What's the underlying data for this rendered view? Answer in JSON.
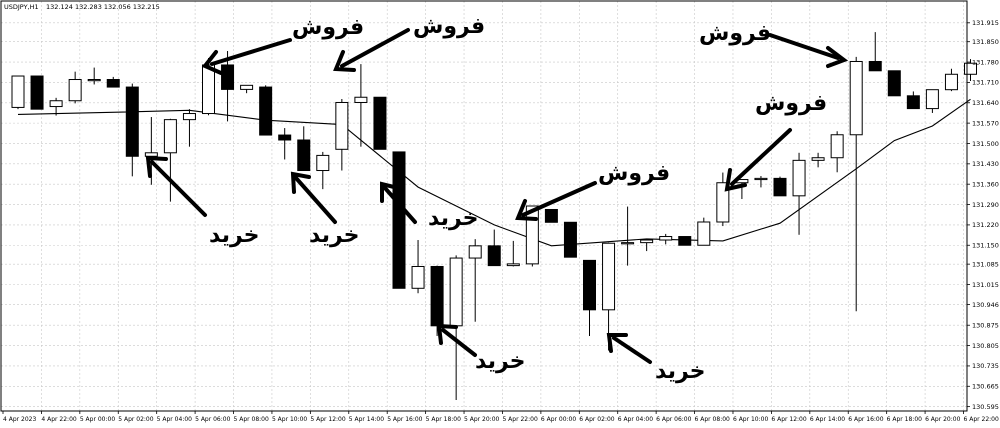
{
  "header": {
    "symbol": "USDJPY,H1",
    "ohlc": "132.124 132.283 132.056 132.215"
  },
  "colors": {
    "background": "#ffffff",
    "bull_body": "#ffffff",
    "bear_body": "#000000",
    "candle_outline": "#000000",
    "moving_average": "#000000",
    "grid": "#c8c8c8"
  },
  "annotations": {
    "buy": "خرید",
    "sell": "فروش"
  },
  "chart_data": {
    "type": "candlestick",
    "title": "",
    "y_ticks": [
      "131.915",
      "131.850",
      "131.780",
      "131.710",
      "131.640",
      "131.570",
      "131.500",
      "131.430",
      "131.360",
      "131.290",
      "131.220",
      "131.150",
      "131.085",
      "131.015",
      "130.946",
      "130.875",
      "130.805",
      "130.735",
      "130.665",
      "130.595"
    ],
    "x_ticks": [
      "4 Apr 2023",
      "4 Apr 22:00",
      "5 Apr 00:00",
      "5 Apr 02:00",
      "5 Apr 04:00",
      "5 Apr 06:00",
      "5 Apr 08:00",
      "5 Apr 10:00",
      "5 Apr 12:00",
      "5 Apr 14:00",
      "5 Apr 16:00",
      "5 Apr 18:00",
      "5 Apr 20:00",
      "5 Apr 22:00",
      "6 Apr 00:00",
      "6 Apr 02:00",
      "6 Apr 04:00",
      "6 Apr 06:00",
      "6 Apr 08:00",
      "6 Apr 10:00",
      "6 Apr 12:00",
      "6 Apr 14:00",
      "6 Apr 16:00",
      "6 Apr 18:00",
      "6 Apr 20:00",
      "6 Apr 22:00"
    ],
    "ylim": [
      130.58,
      131.99
    ],
    "grid": true,
    "candles": [
      {
        "o": 131.624,
        "h": 131.732,
        "l": 131.618,
        "c": 131.732
      },
      {
        "o": 131.732,
        "h": 131.732,
        "l": 131.618,
        "c": 131.618
      },
      {
        "o": 131.627,
        "h": 131.657,
        "l": 131.596,
        "c": 131.647
      },
      {
        "o": 131.647,
        "h": 131.747,
        "l": 131.638,
        "c": 131.72
      },
      {
        "o": 131.72,
        "h": 131.761,
        "l": 131.703,
        "c": 131.72
      },
      {
        "o": 131.72,
        "h": 131.729,
        "l": 131.694,
        "c": 131.694
      },
      {
        "o": 131.694,
        "h": 131.706,
        "l": 131.387,
        "c": 131.456
      },
      {
        "o": 131.456,
        "h": 131.591,
        "l": 131.358,
        "c": 131.468
      },
      {
        "o": 131.468,
        "h": 131.585,
        "l": 131.3,
        "c": 131.582
      },
      {
        "o": 131.582,
        "h": 131.618,
        "l": 131.489,
        "c": 131.603
      },
      {
        "o": 131.603,
        "h": 131.794,
        "l": 131.597,
        "c": 131.77
      },
      {
        "o": 131.77,
        "h": 131.818,
        "l": 131.576,
        "c": 131.686
      },
      {
        "o": 131.686,
        "h": 131.7,
        "l": 131.673,
        "c": 131.7
      },
      {
        "o": 131.694,
        "h": 131.7,
        "l": 131.529,
        "c": 131.529
      },
      {
        "o": 131.529,
        "h": 131.553,
        "l": 131.445,
        "c": 131.512
      },
      {
        "o": 131.512,
        "h": 131.559,
        "l": 131.407,
        "c": 131.407
      },
      {
        "o": 131.407,
        "h": 131.471,
        "l": 131.343,
        "c": 131.459
      },
      {
        "o": 131.48,
        "h": 131.653,
        "l": 131.407,
        "c": 131.641
      },
      {
        "o": 131.641,
        "h": 131.773,
        "l": 131.489,
        "c": 131.659
      },
      {
        "o": 131.659,
        "h": 131.659,
        "l": 131.48,
        "c": 131.48
      },
      {
        "o": 131.471,
        "h": 131.471,
        "l": 131.002,
        "c": 131.002
      },
      {
        "o": 131.002,
        "h": 131.168,
        "l": 130.985,
        "c": 131.077
      },
      {
        "o": 131.077,
        "h": 131.08,
        "l": 130.838,
        "c": 130.873
      },
      {
        "o": 130.873,
        "h": 131.115,
        "l": 130.618,
        "c": 131.106
      },
      {
        "o": 131.106,
        "h": 131.171,
        "l": 130.887,
        "c": 131.148
      },
      {
        "o": 131.148,
        "h": 131.204,
        "l": 131.08,
        "c": 131.08
      },
      {
        "o": 131.08,
        "h": 131.165,
        "l": 131.077,
        "c": 131.086
      },
      {
        "o": 131.086,
        "h": 131.285,
        "l": 131.077,
        "c": 131.285
      },
      {
        "o": 131.273,
        "h": 131.273,
        "l": 131.229,
        "c": 131.229
      },
      {
        "o": 131.229,
        "h": 131.229,
        "l": 131.109,
        "c": 131.109
      },
      {
        "o": 131.098,
        "h": 131.098,
        "l": 130.838,
        "c": 130.928
      },
      {
        "o": 130.928,
        "h": 131.159,
        "l": 130.788,
        "c": 131.157
      },
      {
        "o": 131.157,
        "h": 131.283,
        "l": 131.08,
        "c": 131.159
      },
      {
        "o": 131.159,
        "h": 131.168,
        "l": 131.13,
        "c": 131.168
      },
      {
        "o": 131.168,
        "h": 131.189,
        "l": 131.153,
        "c": 131.18
      },
      {
        "o": 131.18,
        "h": 131.18,
        "l": 131.15,
        "c": 131.15
      },
      {
        "o": 131.15,
        "h": 131.245,
        "l": 131.15,
        "c": 131.23
      },
      {
        "o": 131.23,
        "h": 131.4,
        "l": 131.216,
        "c": 131.365
      },
      {
        "o": 131.365,
        "h": 131.376,
        "l": 131.309,
        "c": 131.376
      },
      {
        "o": 131.376,
        "h": 131.388,
        "l": 131.349,
        "c": 131.38
      },
      {
        "o": 131.38,
        "h": 131.386,
        "l": 131.32,
        "c": 131.32
      },
      {
        "o": 131.32,
        "h": 131.468,
        "l": 131.186,
        "c": 131.442
      },
      {
        "o": 131.442,
        "h": 131.468,
        "l": 131.418,
        "c": 131.451
      },
      {
        "o": 131.451,
        "h": 131.542,
        "l": 131.401,
        "c": 131.53
      },
      {
        "o": 131.53,
        "h": 131.798,
        "l": 130.923,
        "c": 131.782
      },
      {
        "o": 131.782,
        "h": 131.883,
        "l": 131.755,
        "c": 131.75
      },
      {
        "o": 131.75,
        "h": 131.75,
        "l": 131.664,
        "c": 131.664
      },
      {
        "o": 131.664,
        "h": 131.679,
        "l": 131.62,
        "c": 131.62
      },
      {
        "o": 131.62,
        "h": 131.685,
        "l": 131.605,
        "c": 131.685
      },
      {
        "o": 131.685,
        "h": 131.757,
        "l": 131.68,
        "c": 131.738
      },
      {
        "o": 131.738,
        "h": 131.79,
        "l": 131.715,
        "c": 131.776
      }
    ],
    "moving_average": [
      {
        "x": 0,
        "y": 131.6
      },
      {
        "x": 5.5,
        "y": 131.608
      },
      {
        "x": 9,
        "y": 131.614
      },
      {
        "x": 13,
        "y": 131.58
      },
      {
        "x": 17,
        "y": 131.565
      },
      {
        "x": 21,
        "y": 131.35
      },
      {
        "x": 25,
        "y": 131.22
      },
      {
        "x": 28,
        "y": 131.148
      },
      {
        "x": 33,
        "y": 131.172
      },
      {
        "x": 37,
        "y": 131.165
      },
      {
        "x": 40,
        "y": 131.226
      },
      {
        "x": 44,
        "y": 131.413
      },
      {
        "x": 46,
        "y": 131.51
      },
      {
        "x": 48,
        "y": 131.56
      },
      {
        "x": 50,
        "y": 131.652
      }
    ]
  }
}
